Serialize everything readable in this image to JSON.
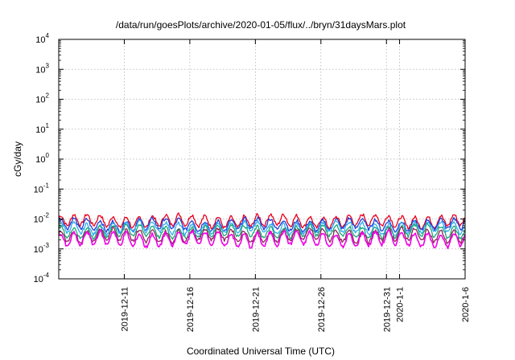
{
  "chart_data": {
    "type": "line",
    "title": "/data/run/goesPlots/archive/2020-01-05/flux/../bryn/31daysMars.plot",
    "xlabel": "Coordinated Universal Time (UTC)",
    "ylabel": "cGy/day",
    "x_range": [
      "2019-12-06",
      "2020-01-06"
    ],
    "x_ticks": [
      {
        "label": "2019-12-11",
        "day": 5
      },
      {
        "label": "2019-12-16",
        "day": 10
      },
      {
        "label": "2019-12-21",
        "day": 15
      },
      {
        "label": "2019-12-26",
        "day": 20
      },
      {
        "label": "2019-12-31",
        "day": 25
      },
      {
        "label": "2020-1-1",
        "day": 26
      },
      {
        "label": "2020-1-6",
        "day": 31
      }
    ],
    "y_scale": "log",
    "ylim": [
      0.0001,
      10000
    ],
    "y_ticks": [
      {
        "base": "10",
        "exp": "-4",
        "value": 0.0001
      },
      {
        "base": "10",
        "exp": "-3",
        "value": 0.001
      },
      {
        "base": "10",
        "exp": "-2",
        "value": 0.01
      },
      {
        "base": "10",
        "exp": "-1",
        "value": 0.1
      },
      {
        "base": "10",
        "exp": "0",
        "value": 1
      },
      {
        "base": "10",
        "exp": "1",
        "value": 10
      },
      {
        "base": "10",
        "exp": "2",
        "value": 100
      },
      {
        "base": "10",
        "exp": "3",
        "value": 1000
      },
      {
        "base": "10",
        "exp": "4",
        "value": 10000
      }
    ],
    "grid": true,
    "series": [
      {
        "color": "#e8001c",
        "level": 0.0085,
        "amp": 0.18
      },
      {
        "color": "#1f3fd8",
        "level": 0.0064,
        "amp": 0.17
      },
      {
        "color": "#33aaf0",
        "level": 0.005,
        "amp": 0.17
      },
      {
        "color": "#18a878",
        "level": 0.0038,
        "amp": 0.18
      },
      {
        "color": "#8a2a58",
        "level": 0.0028,
        "amp": 0.19
      },
      {
        "color": "#f000e8",
        "level": 0.0021,
        "amp": 0.22
      }
    ]
  }
}
